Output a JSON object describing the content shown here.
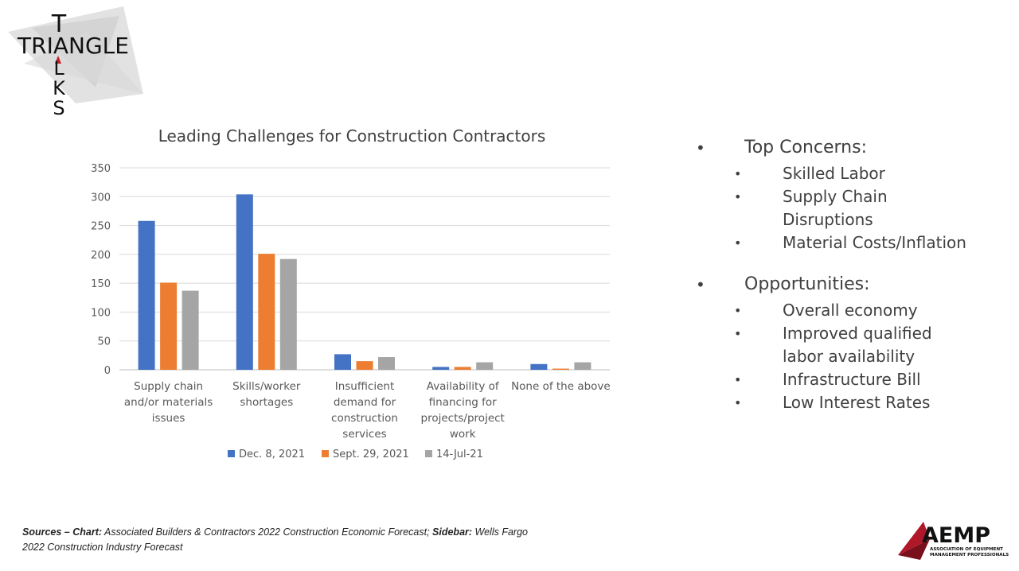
{
  "logo": {
    "text": "TRIANGLE TALKS",
    "top_letter": "T",
    "middle_word": "TRIANGLE",
    "bottom_letters": [
      "L",
      "K",
      "S"
    ]
  },
  "chart_data": {
    "type": "bar",
    "title": "Leading Challenges for Construction Contractors",
    "categories": [
      [
        "Supply chain",
        "and/or materials",
        "issues"
      ],
      [
        "Skills/worker",
        "shortages"
      ],
      [
        "Insufficient",
        "demand for",
        "construction",
        "services"
      ],
      [
        "Availability of",
        "financing for",
        "projects/project",
        "work"
      ],
      [
        "None of the above"
      ]
    ],
    "series": [
      {
        "name": "Dec. 8, 2021",
        "color": "#4472C4",
        "values": [
          258,
          304,
          27,
          5,
          10
        ]
      },
      {
        "name": "Sept. 29, 2021",
        "color": "#ED7D31",
        "values": [
          151,
          201,
          15,
          5,
          2
        ]
      },
      {
        "name": "14-Jul-21",
        "color": "#A5A5A5",
        "values": [
          137,
          192,
          22,
          13,
          13
        ]
      }
    ],
    "ylim": [
      0,
      350
    ],
    "yticks": [
      0,
      50,
      100,
      150,
      200,
      250,
      300,
      350
    ],
    "grid": true,
    "legend": "bottom"
  },
  "sidebar": {
    "sections": [
      {
        "heading": "Top Concerns:",
        "items": [
          "Skilled Labor",
          "Supply Chain Disruptions",
          "Material Costs/Inflation"
        ]
      },
      {
        "heading": "Opportunities:",
        "items": [
          "Overall economy",
          "Improved qualified labor availability",
          "Infrastructure Bill",
          "Low Interest Rates"
        ]
      }
    ]
  },
  "footer": {
    "sources_label": "Sources – Chart:",
    "chart_source": " Associated Builders & Contractors 2022 Construction Economic Forecast;",
    "sidebar_label": " Sidebar:",
    "sidebar_source": " Wells Fargo 2022 Construction Industry Forecast"
  },
  "aemp_logo": {
    "name": "AEMP",
    "line1": "ASSOCIATION OF EQUIPMENT",
    "line2": "MANAGEMENT PROFESSIONALS",
    "accent": "#B0182A"
  }
}
